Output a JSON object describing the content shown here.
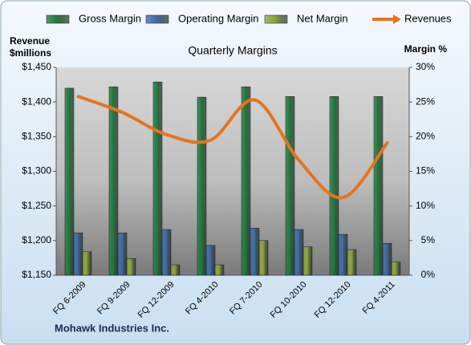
{
  "chart_data": {
    "type": "bar",
    "title": "Quarterly Margins",
    "y_label": "Revenue $millions",
    "y2_label": "Margin %",
    "footer": "Mohawk Industries Inc.",
    "categories": [
      "FQ 6-2009",
      "FQ 9-2009",
      "FQ 12-2009",
      "FQ 4-2010",
      "FQ 7-2010",
      "FQ 10-2010",
      "FQ 12-2010",
      "FQ 4-2011"
    ],
    "series": [
      {
        "name": "Gross Margin",
        "type": "bar",
        "axis": "y2",
        "color": "#1e7a3c",
        "values": [
          27.0,
          27.2,
          27.9,
          25.7,
          27.2,
          25.8,
          25.8,
          25.8
        ]
      },
      {
        "name": "Operating Margin",
        "type": "bar",
        "axis": "y2",
        "color": "#3f6aa8",
        "values": [
          6.1,
          6.1,
          6.6,
          4.3,
          6.8,
          6.6,
          5.9,
          4.6
        ]
      },
      {
        "name": "Net Margin",
        "type": "bar",
        "axis": "y2",
        "color": "#8ca43c",
        "values": [
          3.4,
          2.4,
          1.5,
          1.5,
          5.0,
          4.1,
          3.7,
          1.9
        ]
      },
      {
        "name": "Revenues",
        "type": "line",
        "axis": "y",
        "color": "#e8731c",
        "values": [
          1408,
          1385,
          1353,
          1345,
          1403,
          1316,
          1262,
          1341
        ]
      }
    ],
    "ylim": [
      1150,
      1450
    ],
    "yticks": [
      {
        "value": 1150,
        "label": "$1,150"
      },
      {
        "value": 1200,
        "label": "$1,200"
      },
      {
        "value": 1250,
        "label": "$1,250"
      },
      {
        "value": 1300,
        "label": "$1,300"
      },
      {
        "value": 1350,
        "label": "$1,350"
      },
      {
        "value": 1400,
        "label": "$1,400"
      },
      {
        "value": 1450,
        "label": "$1,450"
      }
    ],
    "y2lim": [
      0,
      30
    ],
    "y2ticks": [
      {
        "value": 0,
        "label": "0%"
      },
      {
        "value": 5,
        "label": "5%"
      },
      {
        "value": 10,
        "label": "10%"
      },
      {
        "value": 15,
        "label": "15%"
      },
      {
        "value": 20,
        "label": "20%"
      },
      {
        "value": 25,
        "label": "25%"
      },
      {
        "value": 30,
        "label": "30%"
      }
    ],
    "legend": "top"
  }
}
